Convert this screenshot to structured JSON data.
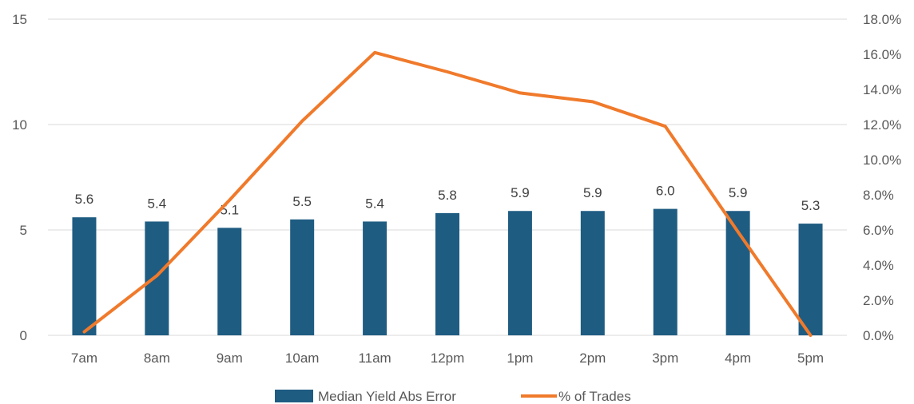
{
  "chart_data": {
    "type": "bar",
    "categories": [
      "7am",
      "8am",
      "9am",
      "10am",
      "11am",
      "12pm",
      "1pm",
      "2pm",
      "3pm",
      "4pm",
      "5pm"
    ],
    "series": [
      {
        "name": "Median Yield Abs Error",
        "type": "bar",
        "axis": "left",
        "color": "#1F5C82",
        "values": [
          5.6,
          5.4,
          5.1,
          5.5,
          5.4,
          5.8,
          5.9,
          5.9,
          6.0,
          5.9,
          5.3
        ],
        "labels": [
          "5.6",
          "5.4",
          "5.1",
          "5.5",
          "5.4",
          "5.8",
          "5.9",
          "5.9",
          "6.0",
          "5.9",
          "5.3"
        ]
      },
      {
        "name": "% of Trades",
        "type": "line",
        "axis": "right",
        "color": "#F07A2B",
        "values": [
          0.2,
          3.4,
          7.7,
          12.2,
          16.1,
          15.0,
          13.8,
          13.3,
          11.9,
          5.9,
          0.0
        ]
      }
    ],
    "left_axis": {
      "ylim": [
        0,
        15
      ],
      "ticks": [
        "0",
        "5",
        "10",
        "15"
      ],
      "tick_values": [
        0,
        5,
        10,
        15
      ]
    },
    "right_axis": {
      "ylim": [
        0,
        18
      ],
      "ticks": [
        "0.0%",
        "2.0%",
        "4.0%",
        "6.0%",
        "8.0%",
        "10.0%",
        "12.0%",
        "14.0%",
        "16.0%",
        "18.0%"
      ],
      "tick_values": [
        0,
        2,
        4,
        6,
        8,
        10,
        12,
        14,
        16,
        18
      ]
    },
    "grid": true,
    "legend_position": "bottom",
    "title": "",
    "xlabel": "",
    "ylabel": ""
  }
}
